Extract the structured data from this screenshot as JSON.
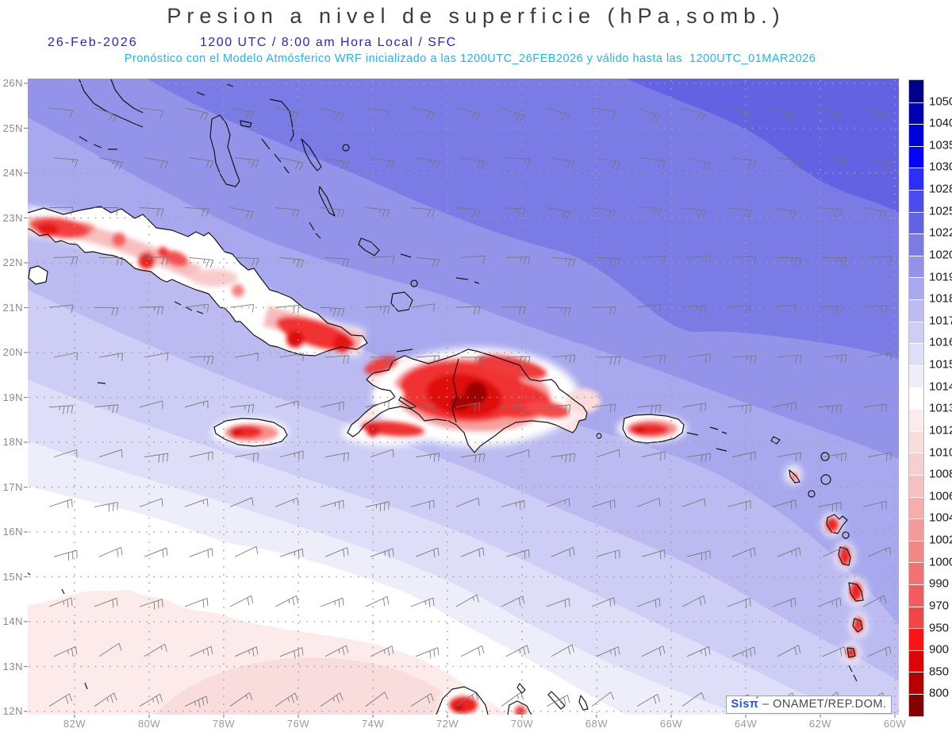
{
  "header": {
    "title": "Presion a nivel de superficie (hPa,somb.)",
    "date": "26-Feb-2026",
    "utc_line": "1200 UTC / 8:00 am Hora Local / SFC",
    "subtitle": "Pronóstico con el Modelo Atmósferico WRF inicializado a las 1200UTC_26FEB2026 y válido hasta las  1200UTC_01MAR2026"
  },
  "colors": {
    "header_blue": "#2626c9",
    "subtitle_cyan": "#25b1f2",
    "land_outline": "#141414",
    "grid_dots": "#a39f96",
    "wind_barbs": "#757575"
  },
  "axes": {
    "lat_labels": [
      "26N",
      "25N",
      "24N",
      "23N",
      "22N",
      "21N",
      "20N",
      "19N",
      "18N",
      "17N",
      "16N",
      "15N",
      "14N",
      "13N",
      "12N"
    ],
    "lon_labels": [
      "82W",
      "80W",
      "78W",
      "76W",
      "74W",
      "72W",
      "70W",
      "68W",
      "66W",
      "64W",
      "62W",
      "60W"
    ]
  },
  "colorbar": {
    "labels": [
      "1050",
      "1040",
      "1035",
      "1030",
      "1028",
      "1025",
      "1022",
      "1020",
      "1019",
      "1018",
      "1017",
      "1016",
      "1015",
      "1014",
      "1013",
      "1012",
      "1010",
      "1008",
      "1006",
      "1004",
      "1002",
      "1000",
      "990",
      "970",
      "950",
      "900",
      "850",
      "800"
    ],
    "cells": [
      "#00008b",
      "#0000b3",
      "#0000d9",
      "#0404fd",
      "#2e2efb",
      "#4c4cf0",
      "#6262e2",
      "#7b7be6",
      "#9393ea",
      "#a8a8ee",
      "#bbbbf1",
      "#cdcdf5",
      "#dedef8",
      "#eeeefb",
      "#ffffff",
      "#fdeaea",
      "#f9dcdc",
      "#f8cfcf",
      "#f7bfbf",
      "#f6adad",
      "#f59a9a",
      "#f48787",
      "#f37272",
      "#f15c5c",
      "#f14646",
      "#fb1414",
      "#dd0404",
      "#b80000",
      "#870000"
    ]
  },
  "credit": {
    "brand": "Sisπ́",
    "dash": "–",
    "text": "ONAMET/REP.DOM."
  }
}
